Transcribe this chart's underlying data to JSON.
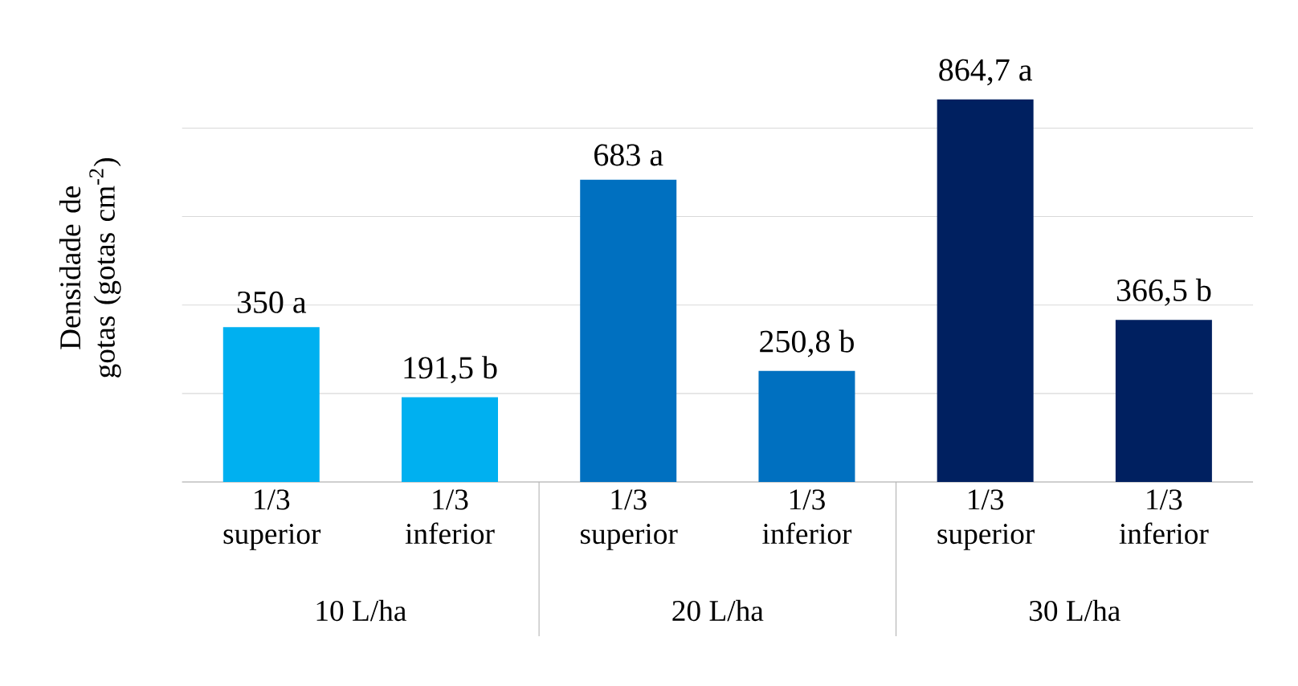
{
  "chart_data": {
    "type": "bar",
    "ylabel": "Densidade de gotas (gotas cm$^{-2}$)",
    "categories": [
      "1/3 superior",
      "1/3 inferior",
      "1/3 superior",
      "1/3 inferior",
      "1/3 superior",
      "1/3 inferior"
    ],
    "values": [
      350,
      191.5,
      683,
      250.8,
      864.7,
      366.5
    ],
    "colors": [
      "#00b0f0",
      "#00b0f0",
      "#0070c0",
      "#0070c0",
      "#002060",
      "#002060"
    ],
    "value_labels": [
      "350 a",
      "191,5 b",
      "683 a",
      "250,8 b",
      "864,7 a",
      "366,5 b"
    ],
    "annotations": [
      "10 L/ha",
      "20 L/ha",
      "30 L/ha"
    ],
    "tick_labels": "x",
    "grid": "y"
  }
}
